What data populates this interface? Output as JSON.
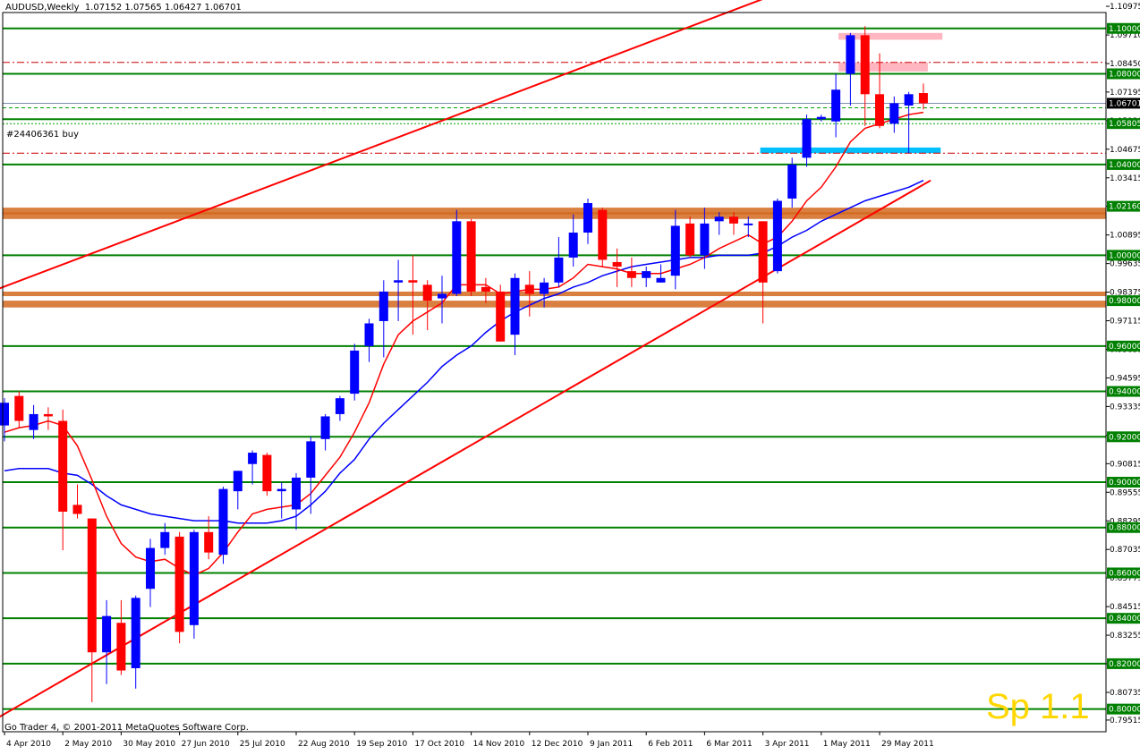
{
  "header": {
    "symbol": "AUDUSD,Weekly",
    "open": "1.07152",
    "high": "1.07565",
    "low": "1.06427",
    "close": "1.06701"
  },
  "footer": {
    "copyright": "Go Trader 4, © 2001-2011 MetaQuotes Software Corp."
  },
  "order_label": "#24406361 buy",
  "watermark": "Sp 1.1",
  "colors": {
    "background": "#ffffff",
    "bull_candle": "#0000ff",
    "bear_candle": "#ff0000",
    "fast_ma": "#ff0000",
    "slow_ma": "#0000ff",
    "level_line": "#008000",
    "trendline": "#ff0000",
    "zone": "#d2691e",
    "cyan_zone": "#00bfff",
    "pink_zone": "#ffb6c1",
    "watermark": "#ffd700"
  },
  "chart_data": {
    "type": "candlestick",
    "ylim": [
      0.79,
      1.107
    ],
    "price_ticks": [
      "1.10975",
      "1.09710",
      "1.08450",
      "1.07195",
      "1.05930",
      "1.04675",
      "1.03415",
      "1.02160",
      "1.00895",
      "0.99635",
      "0.98375",
      "0.97115",
      "0.95855",
      "0.94595",
      "0.93335",
      "0.92065",
      "0.90815",
      "0.89555",
      "0.88295",
      "0.87035",
      "0.85775",
      "0.84515",
      "0.83255",
      "0.81995",
      "0.80735",
      "0.79515"
    ],
    "tagged_levels": [
      "1.10000",
      "1.08000",
      "1.06701",
      "1.05805",
      "1.04000",
      "1.02160",
      "1.00000",
      "0.98000",
      "0.96000",
      "0.94000",
      "0.92000",
      "0.90000",
      "0.88000",
      "0.86000",
      "0.84000",
      "0.82000",
      "0.80000"
    ],
    "level_lines": [
      1.1,
      1.08,
      1.06,
      1.04,
      1.0,
      0.96,
      0.94,
      0.92,
      0.9,
      0.88,
      0.86,
      0.84,
      0.82,
      0.8
    ],
    "date_labels": [
      "4 Apr 2010",
      "2 May 2010",
      "30 May 2010",
      "27 Jun 2010",
      "25 Jul 2010",
      "22 Aug 2010",
      "19 Sep 2010",
      "17 Oct 2010",
      "14 Nov 2010",
      "12 Dec 2010",
      "9 Jan 2011",
      "6 Feb 2011",
      "6 Mar 2011",
      "3 Apr 2011",
      "1 May 2011",
      "29 May 2011"
    ],
    "candles": [
      {
        "o": 0.925,
        "h": 0.937,
        "l": 0.918,
        "c": 0.935
      },
      {
        "o": 0.938,
        "h": 0.94,
        "l": 0.924,
        "c": 0.927
      },
      {
        "o": 0.923,
        "h": 0.934,
        "l": 0.919,
        "c": 0.93
      },
      {
        "o": 0.93,
        "h": 0.933,
        "l": 0.923,
        "c": 0.929
      },
      {
        "o": 0.927,
        "h": 0.932,
        "l": 0.87,
        "c": 0.887
      },
      {
        "o": 0.89,
        "h": 0.899,
        "l": 0.884,
        "c": 0.886
      },
      {
        "o": 0.884,
        "h": 0.884,
        "l": 0.803,
        "c": 0.825
      },
      {
        "o": 0.825,
        "h": 0.848,
        "l": 0.811,
        "c": 0.841
      },
      {
        "o": 0.838,
        "h": 0.848,
        "l": 0.815,
        "c": 0.817
      },
      {
        "o": 0.818,
        "h": 0.85,
        "l": 0.809,
        "c": 0.849
      },
      {
        "o": 0.853,
        "h": 0.875,
        "l": 0.845,
        "c": 0.871
      },
      {
        "o": 0.871,
        "h": 0.882,
        "l": 0.868,
        "c": 0.878
      },
      {
        "o": 0.876,
        "h": 0.878,
        "l": 0.829,
        "c": 0.834
      },
      {
        "o": 0.837,
        "h": 0.879,
        "l": 0.831,
        "c": 0.878
      },
      {
        "o": 0.878,
        "h": 0.885,
        "l": 0.866,
        "c": 0.869
      },
      {
        "o": 0.868,
        "h": 0.898,
        "l": 0.864,
        "c": 0.897
      },
      {
        "o": 0.896,
        "h": 0.905,
        "l": 0.888,
        "c": 0.905
      },
      {
        "o": 0.908,
        "h": 0.914,
        "l": 0.899,
        "c": 0.913
      },
      {
        "o": 0.912,
        "h": 0.913,
        "l": 0.894,
        "c": 0.896
      },
      {
        "o": 0.896,
        "h": 0.9,
        "l": 0.884,
        "c": 0.897
      },
      {
        "o": 0.888,
        "h": 0.904,
        "l": 0.879,
        "c": 0.902
      },
      {
        "o": 0.902,
        "h": 0.92,
        "l": 0.886,
        "c": 0.918
      },
      {
        "o": 0.919,
        "h": 0.93,
        "l": 0.914,
        "c": 0.929
      },
      {
        "o": 0.93,
        "h": 0.938,
        "l": 0.927,
        "c": 0.937
      },
      {
        "o": 0.939,
        "h": 0.961,
        "l": 0.936,
        "c": 0.958
      },
      {
        "o": 0.96,
        "h": 0.972,
        "l": 0.953,
        "c": 0.97
      },
      {
        "o": 0.971,
        "h": 0.989,
        "l": 0.955,
        "c": 0.984
      },
      {
        "o": 0.988,
        "h": 0.998,
        "l": 0.971,
        "c": 0.989
      },
      {
        "o": 0.989,
        "h": 1.0,
        "l": 0.965,
        "c": 0.988
      },
      {
        "o": 0.987,
        "h": 0.989,
        "l": 0.967,
        "c": 0.98
      },
      {
        "o": 0.981,
        "h": 0.991,
        "l": 0.97,
        "c": 0.983
      },
      {
        "o": 0.983,
        "h": 1.02,
        "l": 0.982,
        "c": 1.015
      },
      {
        "o": 1.015,
        "h": 1.016,
        "l": 0.982,
        "c": 0.984
      },
      {
        "o": 0.986,
        "h": 0.99,
        "l": 0.979,
        "c": 0.984
      },
      {
        "o": 0.984,
        "h": 0.987,
        "l": 0.962,
        "c": 0.962
      },
      {
        "o": 0.965,
        "h": 0.992,
        "l": 0.956,
        "c": 0.99
      },
      {
        "o": 0.987,
        "h": 0.993,
        "l": 0.973,
        "c": 0.983
      },
      {
        "o": 0.983,
        "h": 0.99,
        "l": 0.977,
        "c": 0.988
      },
      {
        "o": 0.988,
        "h": 1.008,
        "l": 0.986,
        "c": 0.999
      },
      {
        "o": 0.999,
        "h": 1.018,
        "l": 0.995,
        "c": 1.01
      },
      {
        "o": 1.01,
        "h": 1.025,
        "l": 1.005,
        "c": 1.023
      },
      {
        "o": 1.02,
        "h": 1.021,
        "l": 0.995,
        "c": 0.998
      },
      {
        "o": 0.997,
        "h": 1.003,
        "l": 0.986,
        "c": 0.995
      },
      {
        "o": 0.993,
        "h": 0.999,
        "l": 0.986,
        "c": 0.99
      },
      {
        "o": 0.99,
        "h": 0.995,
        "l": 0.986,
        "c": 0.993
      },
      {
        "o": 0.988,
        "h": 0.996,
        "l": 0.988,
        "c": 0.99
      },
      {
        "o": 0.991,
        "h": 1.02,
        "l": 0.985,
        "c": 1.013
      },
      {
        "o": 1.014,
        "h": 1.017,
        "l": 0.999,
        "c": 1.0
      },
      {
        "o": 1.0,
        "h": 1.021,
        "l": 0.994,
        "c": 1.014
      },
      {
        "o": 1.015,
        "h": 1.019,
        "l": 1.009,
        "c": 1.017
      },
      {
        "o": 1.017,
        "h": 1.019,
        "l": 1.009,
        "c": 1.014
      },
      {
        "o": 1.014,
        "h": 1.017,
        "l": 1.008,
        "c": 1.014
      },
      {
        "o": 1.015,
        "h": 1.015,
        "l": 0.97,
        "c": 0.988
      },
      {
        "o": 0.993,
        "h": 1.025,
        "l": 0.992,
        "c": 1.024
      },
      {
        "o": 1.025,
        "h": 1.043,
        "l": 1.021,
        "c": 1.04
      },
      {
        "o": 1.043,
        "h": 1.062,
        "l": 1.039,
        "c": 1.06
      },
      {
        "o": 1.06,
        "h": 1.062,
        "l": 1.059,
        "c": 1.061
      },
      {
        "o": 1.059,
        "h": 1.08,
        "l": 1.052,
        "c": 1.073
      },
      {
        "o": 1.08,
        "h": 1.098,
        "l": 1.066,
        "c": 1.097
      },
      {
        "o": 1.097,
        "h": 1.101,
        "l": 1.057,
        "c": 1.071
      },
      {
        "o": 1.071,
        "h": 1.089,
        "l": 1.056,
        "c": 1.057
      },
      {
        "o": 1.058,
        "h": 1.07,
        "l": 1.054,
        "c": 1.067
      },
      {
        "o": 1.066,
        "h": 1.072,
        "l": 1.045,
        "c": 1.071
      },
      {
        "o": 1.0715,
        "h": 1.0757,
        "l": 1.0643,
        "c": 1.067
      }
    ],
    "fast_ma": [
      0.922,
      0.924,
      0.925,
      0.927,
      0.925,
      0.916,
      0.901,
      0.885,
      0.873,
      0.867,
      0.865,
      0.866,
      0.862,
      0.859,
      0.862,
      0.869,
      0.878,
      0.886,
      0.888,
      0.889,
      0.89,
      0.895,
      0.903,
      0.911,
      0.922,
      0.935,
      0.952,
      0.965,
      0.971,
      0.975,
      0.979,
      0.987,
      0.987,
      0.987,
      0.983,
      0.984,
      0.985,
      0.985,
      0.986,
      0.99,
      0.996,
      0.995,
      0.994,
      0.992,
      0.992,
      0.992,
      0.994,
      0.996,
      0.999,
      1.003,
      1.006,
      1.009,
      1.005,
      1.008,
      1.015,
      1.024,
      1.03,
      1.039,
      1.05,
      1.056,
      1.058,
      1.06,
      1.062,
      1.063
    ],
    "slow_ma": [
      0.905,
      0.906,
      0.906,
      0.906,
      0.904,
      0.903,
      0.899,
      0.894,
      0.89,
      0.888,
      0.886,
      0.885,
      0.884,
      0.883,
      0.883,
      0.883,
      0.882,
      0.882,
      0.882,
      0.883,
      0.885,
      0.89,
      0.896,
      0.904,
      0.91,
      0.919,
      0.926,
      0.932,
      0.938,
      0.944,
      0.951,
      0.956,
      0.96,
      0.966,
      0.971,
      0.975,
      0.978,
      0.981,
      0.983,
      0.986,
      0.988,
      0.991,
      0.993,
      0.995,
      0.996,
      0.997,
      0.998,
      0.999,
      0.999,
      1.0,
      1.0,
      1.0,
      1.001,
      1.004,
      1.008,
      1.011,
      1.015,
      1.018,
      1.021,
      1.024,
      1.026,
      1.028,
      1.03,
      1.033
    ],
    "ma_start_index": 0,
    "zones": [
      {
        "top": 1.021,
        "bottom": 1.018,
        "kind": "orange"
      },
      {
        "top": 1.019,
        "bottom": 1.016,
        "kind": "orange"
      },
      {
        "top": 0.984,
        "bottom": 0.982,
        "kind": "orange"
      },
      {
        "top": 0.98,
        "bottom": 0.977,
        "kind": "orange"
      }
    ],
    "cyan_zone": {
      "top": 1.0475,
      "bottom": 1.045,
      "from_index": 52,
      "to_index": 64
    },
    "pink_zones": [
      {
        "top": 1.098,
        "bottom": 1.095,
        "from_index": 57,
        "to_index": 64
      },
      {
        "top": 1.085,
        "bottom": 1.081,
        "from_index": 57,
        "to_index": 63
      }
    ],
    "dashdot_lines": [
      {
        "value": 1.085,
        "color": "#cc0000"
      },
      {
        "value": 1.045,
        "color": "#cc0000"
      }
    ],
    "dashed_lines": [
      {
        "value": 1.065,
        "color": "#00a000"
      }
    ],
    "order_line": {
      "value": 1.058
    },
    "current_price_line": {
      "value": 1.067
    },
    "trendlines": [
      {
        "x1": -0.5,
        "y1": 0.985,
        "x2": 63.5,
        "y2": 1.141
      },
      {
        "x1": -0.5,
        "y1": 0.796,
        "x2": 63.5,
        "y2": 1.033
      }
    ]
  }
}
